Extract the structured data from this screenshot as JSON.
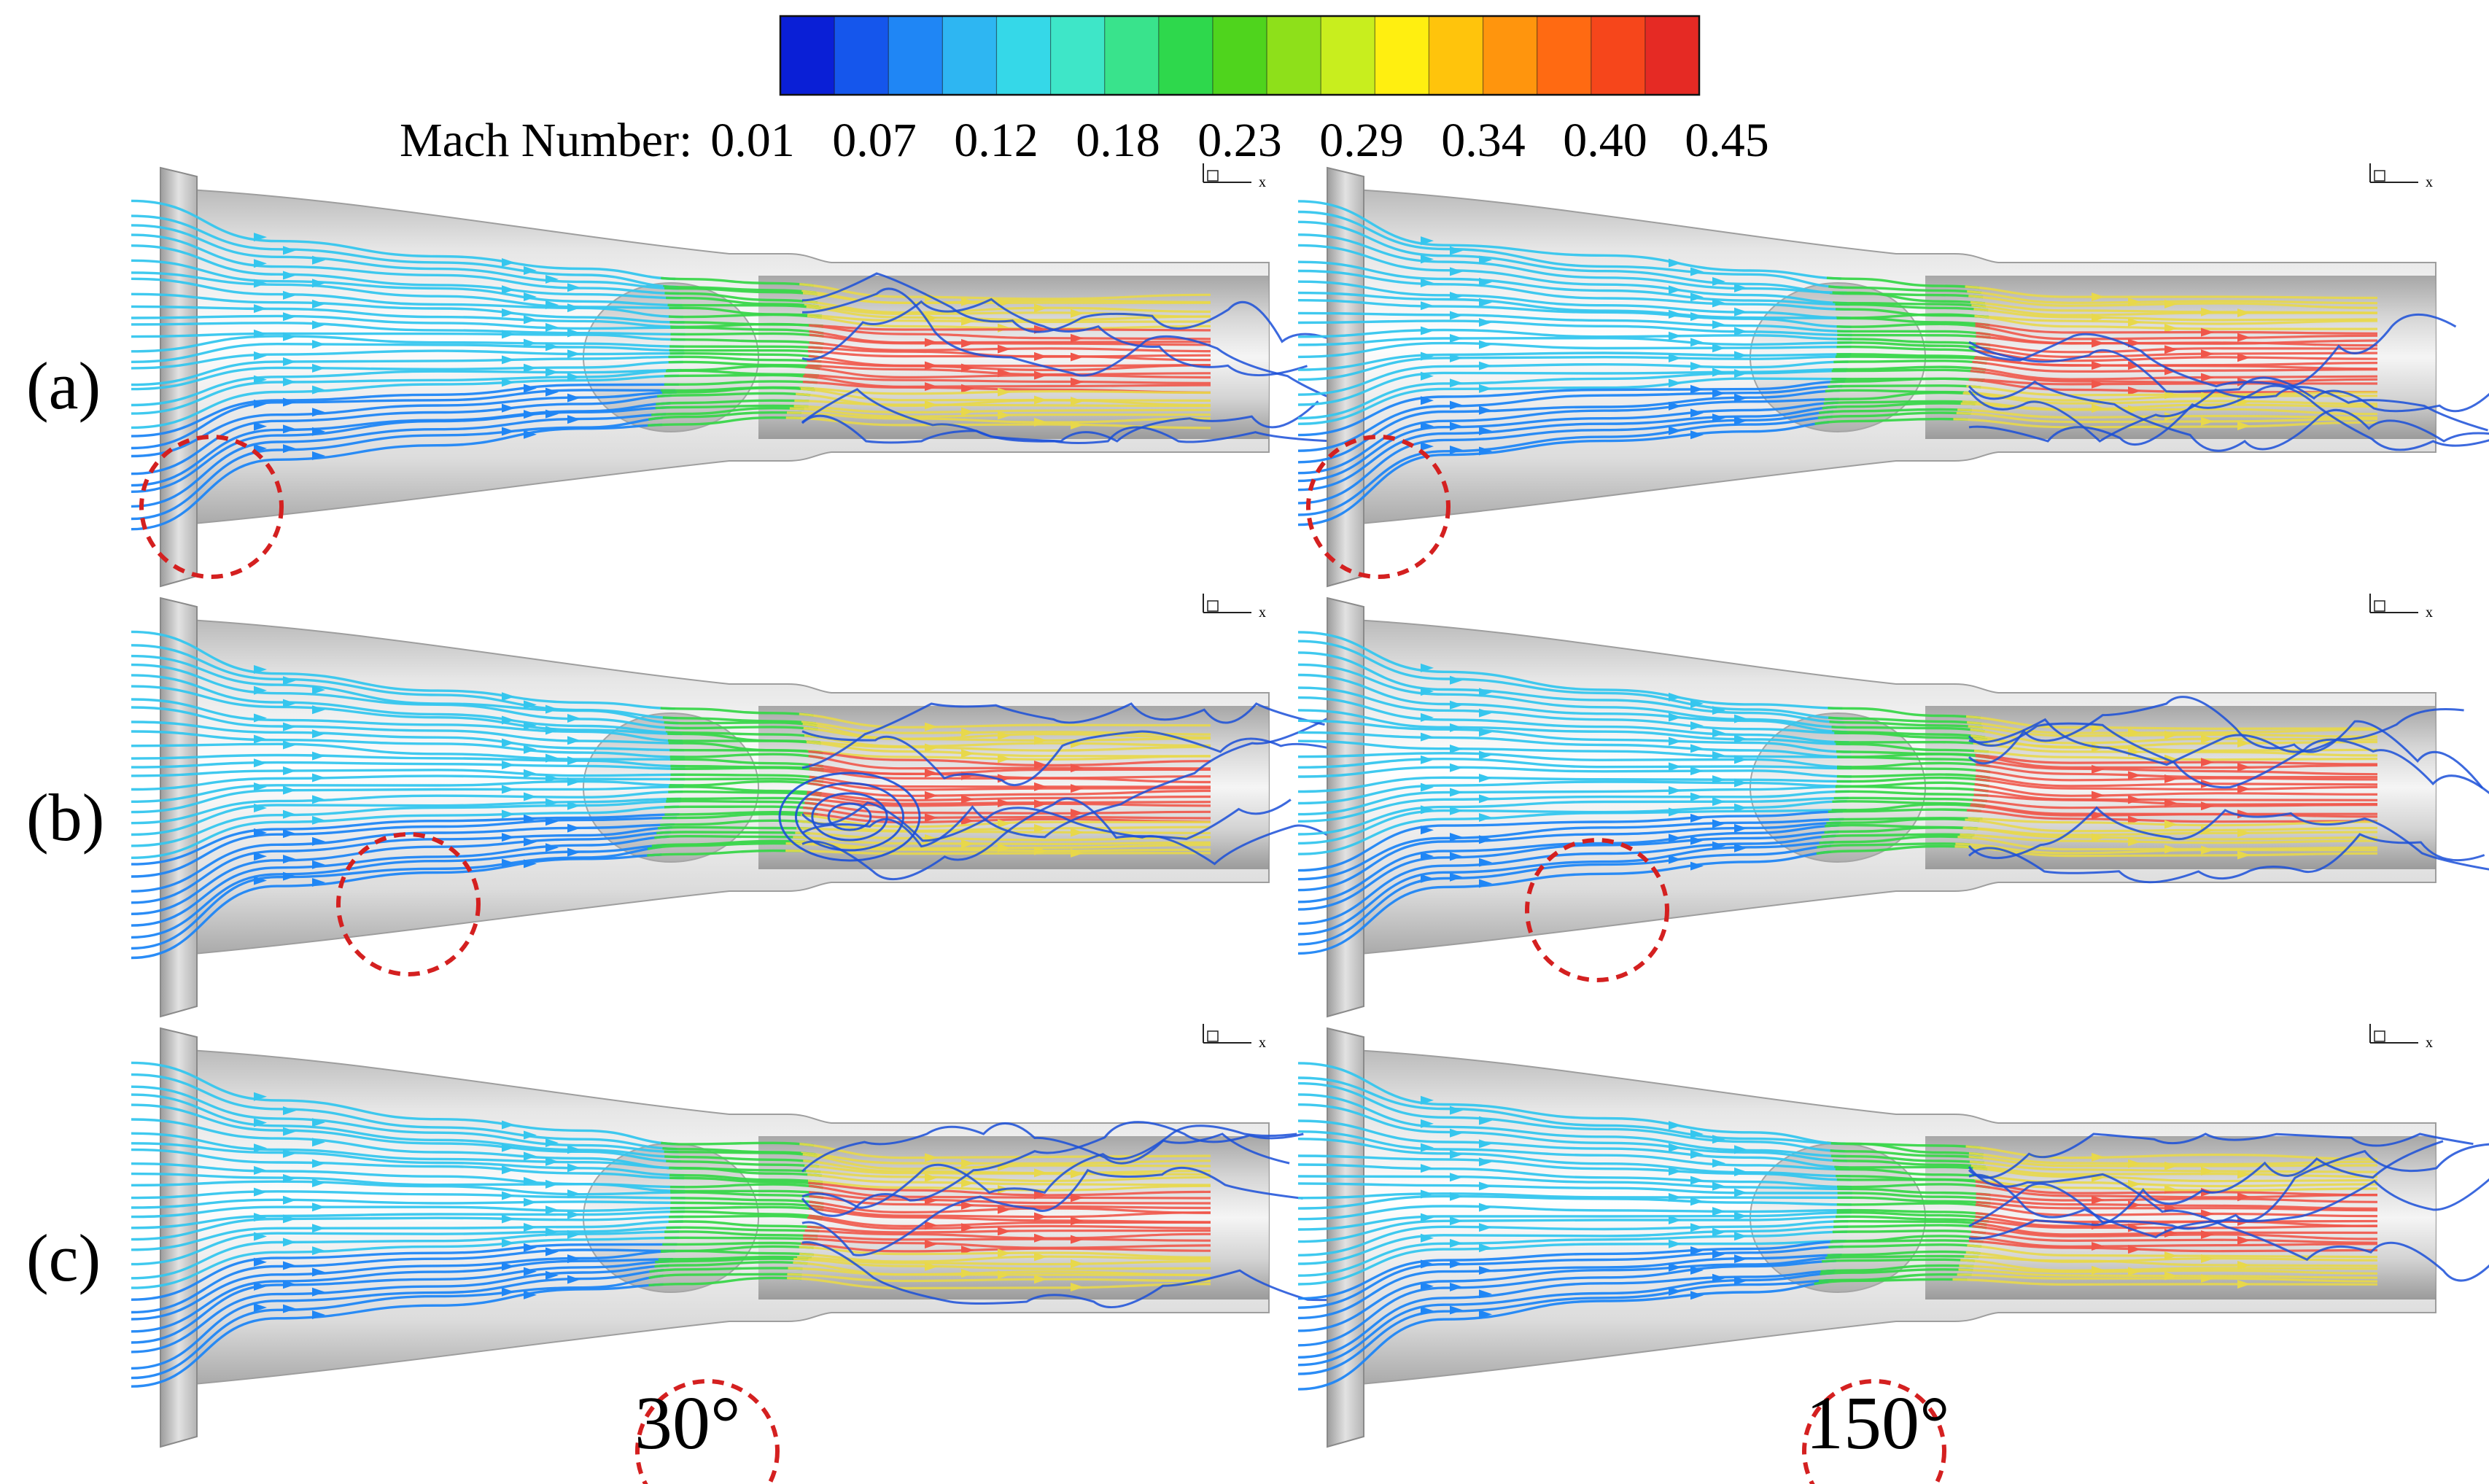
{
  "colorbar": {
    "title": "Mach Number:",
    "ticks": [
      "0.01",
      "0.07",
      "0.12",
      "0.18",
      "0.23",
      "0.29",
      "0.34",
      "0.40",
      "0.45"
    ],
    "colors": [
      "#0a1fd6",
      "#1556ec",
      "#1f86f5",
      "#2eb6f2",
      "#35d8e8",
      "#3ee6c8",
      "#39e38c",
      "#2ed84c",
      "#4fd41d",
      "#8ee01a",
      "#c8ee1e",
      "#ffef10",
      "#ffc40c",
      "#ff950d",
      "#ff6a12",
      "#f6461b",
      "#e52a24"
    ]
  },
  "rows": [
    {
      "label": "(a)"
    },
    {
      "label": "(b)"
    },
    {
      "label": "(c)"
    }
  ],
  "columns": [
    {
      "angle_label": "30°"
    },
    {
      "angle_label": "150°"
    }
  ],
  "axis_glyph": {
    "x_label": "x"
  },
  "highlight_color": "#d42020",
  "streamline_palette": {
    "inlet": "#35c6ee",
    "inlet_dark": "#1f86f5",
    "throat": "#39d64a",
    "mixing": "#e8d84a",
    "core": "#f0564a",
    "recirculation": "#1a4fd8"
  }
}
